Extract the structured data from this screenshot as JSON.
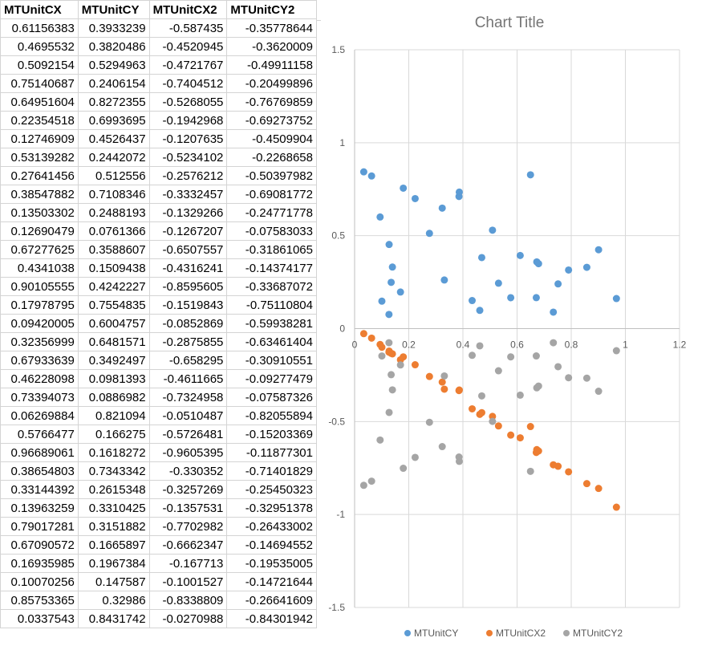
{
  "sheet": {
    "headers": [
      "MTUnitCX",
      "MTUnitCY",
      "MTUnitCX2",
      "MTUnitCY2"
    ],
    "rows": [
      [
        "0.61156383",
        "0.3933239",
        "-0.587435",
        "-0.35778644"
      ],
      [
        "0.4695532",
        "0.3820486",
        "-0.4520945",
        "-0.3620009"
      ],
      [
        "0.5092154",
        "0.5294963",
        "-0.4721767",
        "-0.49911158"
      ],
      [
        "0.75140687",
        "0.2406154",
        "-0.7404512",
        "-0.20499896"
      ],
      [
        "0.64951604",
        "0.8272355",
        "-0.5268055",
        "-0.76769859"
      ],
      [
        "0.22354518",
        "0.6993695",
        "-0.1942968",
        "-0.69273752"
      ],
      [
        "0.12746909",
        "0.4526437",
        "-0.1207635",
        "-0.4509904"
      ],
      [
        "0.53139282",
        "0.2442072",
        "-0.5234102",
        "-0.2268658"
      ],
      [
        "0.27641456",
        "0.512556",
        "-0.2576212",
        "-0.50397982"
      ],
      [
        "0.38547882",
        "0.7108346",
        "-0.3332457",
        "-0.69081772"
      ],
      [
        "0.13503302",
        "0.2488193",
        "-0.1329266",
        "-0.24771778"
      ],
      [
        "0.12690479",
        "0.0761366",
        "-0.1267207",
        "-0.07583033"
      ],
      [
        "0.67277625",
        "0.3588607",
        "-0.6507557",
        "-0.31861065"
      ],
      [
        "0.4341038",
        "0.1509438",
        "-0.4316241",
        "-0.14374177"
      ],
      [
        "0.90105555",
        "0.4242227",
        "-0.8595605",
        "-0.33687072"
      ],
      [
        "0.17978795",
        "0.7554835",
        "-0.1519843",
        "-0.75110804"
      ],
      [
        "0.09420005",
        "0.6004757",
        "-0.0852869",
        "-0.59938281"
      ],
      [
        "0.32356999",
        "0.6481571",
        "-0.2875855",
        "-0.63461404"
      ],
      [
        "0.67933639",
        "0.3492497",
        "-0.658295",
        "-0.30910551"
      ],
      [
        "0.46228098",
        "0.0981393",
        "-0.4611665",
        "-0.09277479"
      ],
      [
        "0.73394073",
        "0.0886982",
        "-0.7324958",
        "-0.07587326"
      ],
      [
        "0.06269884",
        "0.821094",
        "-0.0510487",
        "-0.82055894"
      ],
      [
        "0.5766477",
        "0.166275",
        "-0.5726481",
        "-0.15203369"
      ],
      [
        "0.96689061",
        "0.1618272",
        "-0.9605395",
        "-0.11877301"
      ],
      [
        "0.38654803",
        "0.7343342",
        "-0.330352",
        "-0.71401829"
      ],
      [
        "0.33144392",
        "0.2615348",
        "-0.3257269",
        "-0.25450323"
      ],
      [
        "0.13963259",
        "0.3310425",
        "-0.1357531",
        "-0.32951378"
      ],
      [
        "0.79017281",
        "0.3151882",
        "-0.7702982",
        "-0.26433002"
      ],
      [
        "0.67090572",
        "0.1665897",
        "-0.6662347",
        "-0.14694552"
      ],
      [
        "0.16935985",
        "0.1967384",
        "-0.167713",
        "-0.19535005"
      ],
      [
        "0.10070256",
        "0.147587",
        "-0.1001527",
        "-0.14721644"
      ],
      [
        "0.85753365",
        "0.32986",
        "-0.8338809",
        "-0.26641609"
      ],
      [
        "0.0337543",
        "0.8431742",
        "-0.0270988",
        "-0.84301942"
      ]
    ]
  },
  "chart_data": {
    "type": "scatter",
    "title": "Chart Title",
    "xlabel": "",
    "ylabel": "",
    "xlim": [
      0,
      1.2
    ],
    "ylim": [
      -1.5,
      1.5
    ],
    "x_ticks": [
      "0",
      "0.2",
      "0.4",
      "0.6",
      "0.8",
      "1",
      "1.2"
    ],
    "y_ticks": [
      "1.5",
      "1",
      "0.5",
      "0",
      "-0.5",
      "-1",
      "-1.5"
    ],
    "grid": true,
    "legend_position": "bottom",
    "series": [
      {
        "name": "MTUnitCY",
        "color": "#5b9bd5",
        "x": [
          0.61156383,
          0.4695532,
          0.5092154,
          0.75140687,
          0.64951604,
          0.22354518,
          0.12746909,
          0.53139282,
          0.27641456,
          0.38547882,
          0.13503302,
          0.12690479,
          0.67277625,
          0.4341038,
          0.90105555,
          0.17978795,
          0.09420005,
          0.32356999,
          0.67933639,
          0.46228098,
          0.73394073,
          0.06269884,
          0.5766477,
          0.96689061,
          0.38654803,
          0.33144392,
          0.13963259,
          0.79017281,
          0.67090572,
          0.16935985,
          0.10070256,
          0.85753365,
          0.0337543
        ],
        "y": [
          0.3933239,
          0.3820486,
          0.5294963,
          0.2406154,
          0.8272355,
          0.6993695,
          0.4526437,
          0.2442072,
          0.512556,
          0.7108346,
          0.2488193,
          0.0761366,
          0.3588607,
          0.1509438,
          0.4242227,
          0.7554835,
          0.6004757,
          0.6481571,
          0.3492497,
          0.0981393,
          0.0886982,
          0.821094,
          0.166275,
          0.1618272,
          0.7343342,
          0.2615348,
          0.3310425,
          0.3151882,
          0.1665897,
          0.1967384,
          0.147587,
          0.32986,
          0.8431742
        ]
      },
      {
        "name": "MTUnitCX2",
        "color": "#ed7d31",
        "x": [
          0.61156383,
          0.4695532,
          0.5092154,
          0.75140687,
          0.64951604,
          0.22354518,
          0.12746909,
          0.53139282,
          0.27641456,
          0.38547882,
          0.13503302,
          0.12690479,
          0.67277625,
          0.4341038,
          0.90105555,
          0.17978795,
          0.09420005,
          0.32356999,
          0.67933639,
          0.46228098,
          0.73394073,
          0.06269884,
          0.5766477,
          0.96689061,
          0.38654803,
          0.33144392,
          0.13963259,
          0.79017281,
          0.67090572,
          0.16935985,
          0.10070256,
          0.85753365,
          0.0337543
        ],
        "y": [
          -0.587435,
          -0.4520945,
          -0.4721767,
          -0.7404512,
          -0.5268055,
          -0.1942968,
          -0.1207635,
          -0.5234102,
          -0.2576212,
          -0.3332457,
          -0.1329266,
          -0.1267207,
          -0.6507557,
          -0.4316241,
          -0.8595605,
          -0.1519843,
          -0.0852869,
          -0.2875855,
          -0.658295,
          -0.4611665,
          -0.7324958,
          -0.0510487,
          -0.5726481,
          -0.9605395,
          -0.330352,
          -0.3257269,
          -0.1357531,
          -0.7702982,
          -0.6662347,
          -0.167713,
          -0.1001527,
          -0.8338809,
          -0.0270988
        ]
      },
      {
        "name": "MTUnitCY2",
        "color": "#a5a5a5",
        "x": [
          0.61156383,
          0.4695532,
          0.5092154,
          0.75140687,
          0.64951604,
          0.22354518,
          0.12746909,
          0.53139282,
          0.27641456,
          0.38547882,
          0.13503302,
          0.12690479,
          0.67277625,
          0.4341038,
          0.90105555,
          0.17978795,
          0.09420005,
          0.32356999,
          0.67933639,
          0.46228098,
          0.73394073,
          0.06269884,
          0.5766477,
          0.96689061,
          0.38654803,
          0.33144392,
          0.13963259,
          0.79017281,
          0.67090572,
          0.16935985,
          0.10070256,
          0.85753365,
          0.0337543
        ],
        "y": [
          -0.35778644,
          -0.3620009,
          -0.49911158,
          -0.20499896,
          -0.76769859,
          -0.69273752,
          -0.4509904,
          -0.2268658,
          -0.50397982,
          -0.69081772,
          -0.24771778,
          -0.07583033,
          -0.31861065,
          -0.14374177,
          -0.33687072,
          -0.75110804,
          -0.59938281,
          -0.63461404,
          -0.30910551,
          -0.09277479,
          -0.07587326,
          -0.82055894,
          -0.15203369,
          -0.11877301,
          -0.71401829,
          -0.25450323,
          -0.32951378,
          -0.26433002,
          -0.14694552,
          -0.19535005,
          -0.14721644,
          -0.26641609,
          -0.84301942
        ]
      }
    ]
  }
}
